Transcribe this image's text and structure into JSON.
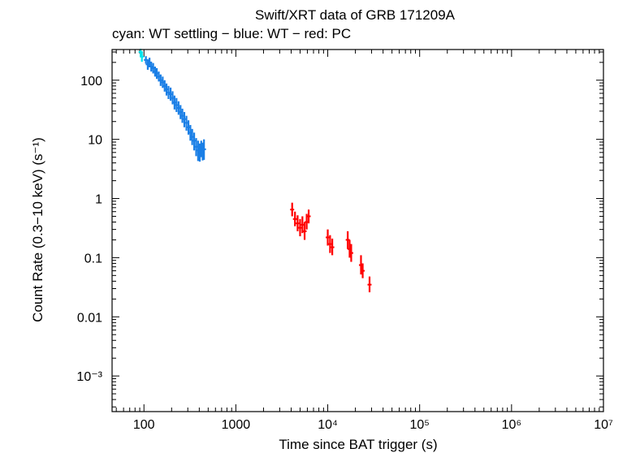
{
  "chart_data": {
    "type": "scatter",
    "title": "Swift/XRT data of GRB 171209A",
    "subtitle": "cyan: WT settling − blue: WT − red: PC",
    "xlabel": "Time since BAT trigger (s)",
    "ylabel": "Count Rate (0.3−10 keV) (s⁻¹)",
    "xscale": "log",
    "yscale": "log",
    "xlim": [
      45,
      10000000
    ],
    "ylim": [
      0.00025,
      330
    ],
    "x_ticks": [
      {
        "value": 100,
        "label": "100"
      },
      {
        "value": 1000,
        "label": "1000"
      },
      {
        "value": 10000,
        "label": "10⁴"
      },
      {
        "value": 100000,
        "label": "10⁵"
      },
      {
        "value": 1000000,
        "label": "10⁶"
      },
      {
        "value": 10000000,
        "label": "10⁷"
      }
    ],
    "y_ticks": [
      {
        "value": 100,
        "label": "100"
      },
      {
        "value": 10,
        "label": "10"
      },
      {
        "value": 1,
        "label": "1"
      },
      {
        "value": 0.1,
        "label": "0.1"
      },
      {
        "value": 0.01,
        "label": "0.01"
      },
      {
        "value": 0.001,
        "label": "10⁻³"
      }
    ],
    "series": [
      {
        "name": "WT settling",
        "color": "#00e5ee",
        "points": [
          {
            "x": 92,
            "y": 300,
            "ylo": 250,
            "yhi": 340
          },
          {
            "x": 95,
            "y": 250,
            "ylo": 205,
            "yhi": 300
          }
        ]
      },
      {
        "name": "WT",
        "color": "#1a7fe6",
        "points": [
          {
            "x": 105,
            "y": 220,
            "ylo": 190,
            "yhi": 255
          },
          {
            "x": 110,
            "y": 185,
            "ylo": 150,
            "yhi": 225
          },
          {
            "x": 115,
            "y": 200,
            "ylo": 165,
            "yhi": 240
          },
          {
            "x": 120,
            "y": 170,
            "ylo": 140,
            "yhi": 205
          },
          {
            "x": 126,
            "y": 160,
            "ylo": 130,
            "yhi": 195
          },
          {
            "x": 132,
            "y": 140,
            "ylo": 115,
            "yhi": 170
          },
          {
            "x": 138,
            "y": 130,
            "ylo": 105,
            "yhi": 160
          },
          {
            "x": 145,
            "y": 115,
            "ylo": 95,
            "yhi": 140
          },
          {
            "x": 152,
            "y": 100,
            "ylo": 80,
            "yhi": 125
          },
          {
            "x": 160,
            "y": 92,
            "ylo": 74,
            "yhi": 115
          },
          {
            "x": 168,
            "y": 80,
            "ylo": 64,
            "yhi": 100
          },
          {
            "x": 176,
            "y": 70,
            "ylo": 55,
            "yhi": 88
          },
          {
            "x": 185,
            "y": 62,
            "ylo": 48,
            "yhi": 80
          },
          {
            "x": 195,
            "y": 58,
            "ylo": 45,
            "yhi": 75
          },
          {
            "x": 205,
            "y": 50,
            "ylo": 39,
            "yhi": 65
          },
          {
            "x": 215,
            "y": 42,
            "ylo": 32,
            "yhi": 55
          },
          {
            "x": 226,
            "y": 38,
            "ylo": 29,
            "yhi": 50
          },
          {
            "x": 238,
            "y": 34,
            "ylo": 26,
            "yhi": 44
          },
          {
            "x": 250,
            "y": 29,
            "ylo": 22,
            "yhi": 38
          },
          {
            "x": 262,
            "y": 25,
            "ylo": 19,
            "yhi": 33
          },
          {
            "x": 275,
            "y": 22,
            "ylo": 16,
            "yhi": 29
          },
          {
            "x": 290,
            "y": 19,
            "ylo": 14,
            "yhi": 25
          },
          {
            "x": 305,
            "y": 16,
            "ylo": 12,
            "yhi": 21
          },
          {
            "x": 320,
            "y": 13,
            "ylo": 9.5,
            "yhi": 17.5
          },
          {
            "x": 335,
            "y": 11,
            "ylo": 8,
            "yhi": 15
          },
          {
            "x": 352,
            "y": 9.5,
            "ylo": 6.5,
            "yhi": 13
          },
          {
            "x": 370,
            "y": 7.5,
            "ylo": 5.2,
            "yhi": 10.5
          },
          {
            "x": 388,
            "y": 6.5,
            "ylo": 4.3,
            "yhi": 9.5
          },
          {
            "x": 405,
            "y": 6.0,
            "ylo": 4.2,
            "yhi": 8.5
          },
          {
            "x": 420,
            "y": 7.0,
            "ylo": 5.0,
            "yhi": 9.5
          },
          {
            "x": 435,
            "y": 6.2,
            "ylo": 4.4,
            "yhi": 8.8
          },
          {
            "x": 450,
            "y": 6.8,
            "ylo": 4.5,
            "yhi": 10
          }
        ]
      },
      {
        "name": "PC",
        "color": "#ff0000",
        "points": [
          {
            "x": 4100,
            "y": 0.65,
            "ylo": 0.5,
            "yhi": 0.85
          },
          {
            "x": 4400,
            "y": 0.45,
            "ylo": 0.34,
            "yhi": 0.6
          },
          {
            "x": 4700,
            "y": 0.38,
            "ylo": 0.28,
            "yhi": 0.52
          },
          {
            "x": 5000,
            "y": 0.32,
            "ylo": 0.23,
            "yhi": 0.45
          },
          {
            "x": 5300,
            "y": 0.36,
            "ylo": 0.26,
            "yhi": 0.5
          },
          {
            "x": 5600,
            "y": 0.28,
            "ylo": 0.2,
            "yhi": 0.4
          },
          {
            "x": 5900,
            "y": 0.4,
            "ylo": 0.3,
            "yhi": 0.55
          },
          {
            "x": 6200,
            "y": 0.5,
            "ylo": 0.38,
            "yhi": 0.65
          },
          {
            "x": 10000,
            "y": 0.22,
            "ylo": 0.16,
            "yhi": 0.3
          },
          {
            "x": 10600,
            "y": 0.17,
            "ylo": 0.12,
            "yhi": 0.24
          },
          {
            "x": 11200,
            "y": 0.15,
            "ylo": 0.11,
            "yhi": 0.21
          },
          {
            "x": 16500,
            "y": 0.2,
            "ylo": 0.14,
            "yhi": 0.28
          },
          {
            "x": 17300,
            "y": 0.14,
            "ylo": 0.1,
            "yhi": 0.2
          },
          {
            "x": 18000,
            "y": 0.12,
            "ylo": 0.085,
            "yhi": 0.17
          },
          {
            "x": 23000,
            "y": 0.075,
            "ylo": 0.052,
            "yhi": 0.11
          },
          {
            "x": 24000,
            "y": 0.06,
            "ylo": 0.045,
            "yhi": 0.08
          },
          {
            "x": 28500,
            "y": 0.035,
            "ylo": 0.026,
            "yhi": 0.048
          }
        ]
      }
    ]
  }
}
